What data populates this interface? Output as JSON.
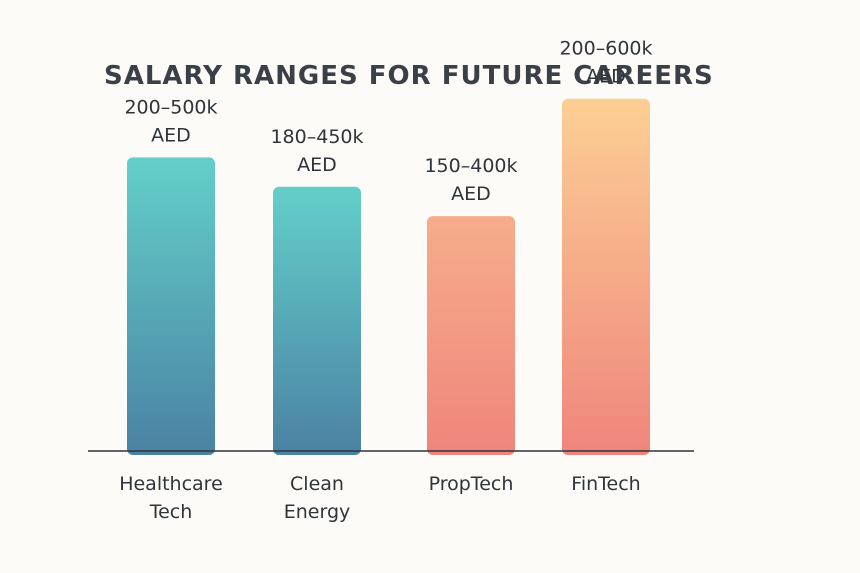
{
  "chart_data": {
    "type": "bar",
    "title": "SALARY RANGES FOR FUTURE CAREERS",
    "xlabel": "",
    "ylabel": "",
    "ylim": [
      0,
      700
    ],
    "grid": false,
    "legend": "none",
    "categories": [
      [
        "Healthcare",
        "Tech"
      ],
      [
        "Clean",
        "Energy"
      ],
      [
        "PropTech"
      ],
      [
        "FinTech"
      ]
    ],
    "values": [
      500,
      450,
      400,
      600
    ],
    "ranges": [
      {
        "min": 200,
        "max": 500
      },
      {
        "min": 180,
        "max": 450
      },
      {
        "min": 150,
        "max": 400
      },
      {
        "min": 200,
        "max": 600
      }
    ],
    "data_labels": [
      [
        "200–500k",
        "AED"
      ],
      [
        "180–450k",
        "AED"
      ],
      [
        "150–400k",
        "AED"
      ],
      [
        "200–600k",
        "AED"
      ]
    ],
    "bar_colors": [
      {
        "top": "#63cfc9",
        "bottom": "#4a82a3"
      },
      {
        "top": "#63cfc9",
        "bottom": "#4a82a3"
      },
      {
        "top": "#f6ad8a",
        "bottom": "#ef857c"
      },
      {
        "top": "#fccf94",
        "bottom": "#ef857c"
      }
    ]
  }
}
